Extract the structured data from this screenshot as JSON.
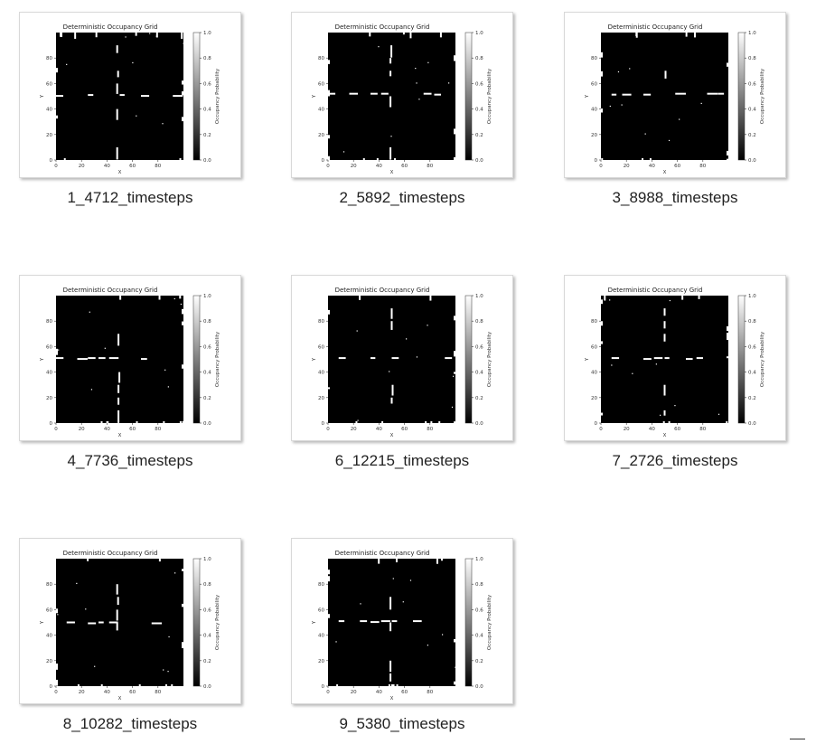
{
  "files": [
    {
      "name": "1_4712_timesteps",
      "h_row": 51,
      "v_col": 48
    },
    {
      "name": "2_5892_timesteps",
      "h_row": 52,
      "v_col": 49
    },
    {
      "name": "3_8988_timesteps",
      "h_row": 52,
      "v_col": 50
    },
    {
      "name": "4_7736_timesteps",
      "h_row": 51,
      "v_col": 49
    },
    {
      "name": "6_12215_timesteps",
      "h_row": 51,
      "v_col": 50
    },
    {
      "name": "7_2726_timesteps",
      "h_row": 51,
      "v_col": 50
    },
    {
      "name": "8_10282_timesteps",
      "h_row": 50,
      "v_col": 48
    },
    {
      "name": "9_5380_timesteps",
      "h_row": 51,
      "v_col": 49
    }
  ],
  "plot": {
    "title": "Deterministic Occupancy Grid",
    "xlabel": "X",
    "ylabel": "Y",
    "colorbar_label": "Occupancy Probability",
    "x_ticks": [
      "0",
      "20",
      "40",
      "60",
      "80"
    ],
    "y_ticks": [
      "0",
      "20",
      "40",
      "60",
      "80"
    ],
    "colorbar_ticks": [
      "0.0",
      "0.2",
      "0.4",
      "0.6",
      "0.8",
      "1.0"
    ]
  }
}
